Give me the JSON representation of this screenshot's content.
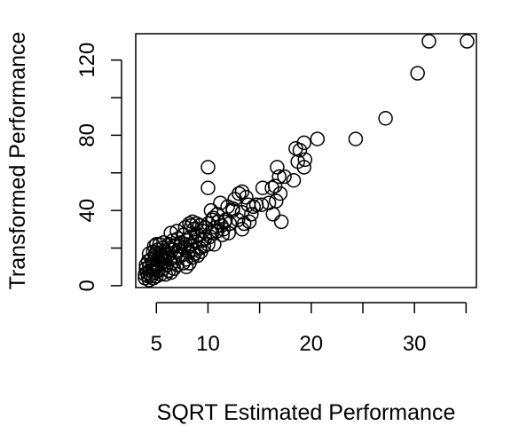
{
  "chart_data": {
    "type": "scatter",
    "title": "",
    "xlabel": "SQRT Estimated Performance",
    "ylabel": "Transformed Performance",
    "xlim": [
      3,
      36
    ],
    "ylim": [
      -1,
      134
    ],
    "xticks": [
      5,
      10,
      15,
      20,
      25,
      30,
      35
    ],
    "xtick_labels": [
      "5",
      "10",
      "",
      "20",
      "",
      "30",
      ""
    ],
    "yticks": [
      0,
      20,
      40,
      60,
      80,
      100,
      120
    ],
    "ytick_labels": [
      "0",
      "",
      "40",
      "",
      "80",
      "",
      "120"
    ],
    "marker": "open-circle",
    "color": "#000000",
    "points": [
      [
        35.1,
        130
      ],
      [
        31.4,
        130
      ],
      [
        30.3,
        113
      ],
      [
        27.2,
        89
      ],
      [
        24.3,
        78
      ],
      [
        20.6,
        78
      ],
      [
        19.3,
        76
      ],
      [
        18.5,
        73
      ],
      [
        18.9,
        72
      ],
      [
        19.4,
        67
      ],
      [
        18.7,
        66
      ],
      [
        19.3,
        63
      ],
      [
        18.3,
        56
      ],
      [
        16.7,
        63
      ],
      [
        16.9,
        58
      ],
      [
        17.4,
        58
      ],
      [
        16.5,
        53
      ],
      [
        16.2,
        52
      ],
      [
        17.0,
        49
      ],
      [
        15.3,
        52
      ],
      [
        16.6,
        45
      ],
      [
        10.0,
        63
      ],
      [
        10.0,
        52
      ],
      [
        13.3,
        50
      ],
      [
        13.7,
        47
      ],
      [
        12.6,
        46
      ],
      [
        14.7,
        43
      ],
      [
        14.4,
        42
      ],
      [
        12.4,
        41
      ],
      [
        13.3,
        39
      ],
      [
        14.2,
        38
      ],
      [
        16.3,
        38
      ],
      [
        17.1,
        34
      ],
      [
        13.5,
        33
      ],
      [
        13.3,
        30
      ],
      [
        11.2,
        44
      ],
      [
        11.9,
        42
      ],
      [
        12.4,
        40
      ],
      [
        10.3,
        40
      ],
      [
        10.9,
        38
      ],
      [
        10.4,
        35
      ],
      [
        11.0,
        34
      ],
      [
        11.3,
        32
      ],
      [
        10.7,
        31
      ],
      [
        11.5,
        30
      ],
      [
        12.0,
        28
      ],
      [
        11.4,
        27
      ],
      [
        10.0,
        33
      ],
      [
        9.7,
        31
      ],
      [
        8.9,
        33
      ],
      [
        8.5,
        34
      ],
      [
        8.2,
        33
      ],
      [
        7.8,
        31
      ],
      [
        8.6,
        30
      ],
      [
        9.5,
        29
      ],
      [
        9.0,
        27
      ],
      [
        8.3,
        26
      ],
      [
        7.6,
        27
      ],
      [
        7.0,
        29
      ],
      [
        6.4,
        28
      ],
      [
        10.2,
        26
      ],
      [
        9.7,
        25
      ],
      [
        9.4,
        24
      ],
      [
        10.0,
        22
      ],
      [
        10.6,
        22
      ],
      [
        8.8,
        24
      ],
      [
        8.4,
        22
      ],
      [
        8.0,
        24
      ],
      [
        7.4,
        23
      ],
      [
        7.1,
        25
      ],
      [
        6.6,
        24
      ],
      [
        6.2,
        22
      ],
      [
        5.7,
        23
      ],
      [
        5.3,
        22
      ],
      [
        5.0,
        22
      ],
      [
        4.8,
        21
      ],
      [
        9.2,
        20
      ],
      [
        8.6,
        19
      ],
      [
        8.1,
        18
      ],
      [
        7.7,
        20
      ],
      [
        7.2,
        19
      ],
      [
        6.9,
        18
      ],
      [
        6.5,
        19
      ],
      [
        6.0,
        17
      ],
      [
        5.6,
        18
      ],
      [
        5.1,
        19
      ],
      [
        4.7,
        18
      ],
      [
        4.3,
        17
      ],
      [
        9.0,
        16
      ],
      [
        8.5,
        15
      ],
      [
        7.9,
        14
      ],
      [
        7.4,
        16
      ],
      [
        6.8,
        15
      ],
      [
        6.3,
        14
      ],
      [
        5.8,
        15
      ],
      [
        5.4,
        14
      ],
      [
        4.9,
        15
      ],
      [
        4.5,
        14
      ],
      [
        4.2,
        13
      ],
      [
        8.2,
        12
      ],
      [
        7.6,
        12
      ],
      [
        7.0,
        11
      ],
      [
        6.5,
        12
      ],
      [
        6.0,
        11
      ],
      [
        5.5,
        12
      ],
      [
        5.0,
        11
      ],
      [
        4.6,
        12
      ],
      [
        4.3,
        10
      ],
      [
        4.0,
        11
      ],
      [
        6.7,
        9
      ],
      [
        6.2,
        8
      ],
      [
        5.7,
        9
      ],
      [
        5.2,
        8
      ],
      [
        4.8,
        9
      ],
      [
        4.4,
        8
      ],
      [
        4.1,
        7
      ],
      [
        5.9,
        6
      ],
      [
        5.4,
        6
      ],
      [
        4.9,
        7
      ],
      [
        4.5,
        5
      ],
      [
        4.2,
        5
      ],
      [
        3.9,
        4
      ],
      [
        3.9,
        6
      ],
      [
        4.3,
        3
      ],
      [
        4.7,
        4
      ],
      [
        5.0,
        5
      ],
      [
        4.6,
        10
      ],
      [
        5.2,
        13
      ],
      [
        5.8,
        13
      ],
      [
        6.1,
        16
      ],
      [
        5.4,
        16
      ],
      [
        4.9,
        17
      ],
      [
        5.6,
        20
      ],
      [
        6.3,
        20
      ],
      [
        6.8,
        21
      ],
      [
        7.3,
        21
      ],
      [
        7.8,
        22
      ],
      [
        8.3,
        21
      ],
      [
        8.7,
        17
      ],
      [
        9.3,
        18
      ],
      [
        9.6,
        21
      ],
      [
        10.4,
        28
      ],
      [
        10.9,
        29
      ],
      [
        11.7,
        35
      ],
      [
        12.9,
        35
      ],
      [
        13.9,
        43
      ],
      [
        14.0,
        34
      ],
      [
        11.6,
        34
      ],
      [
        12.1,
        33
      ],
      [
        13.0,
        49
      ],
      [
        15.9,
        44
      ],
      [
        15.2,
        43
      ],
      [
        10.5,
        36
      ],
      [
        9.2,
        32
      ],
      [
        8.4,
        32
      ],
      [
        7.9,
        10
      ],
      [
        5.1,
        10
      ],
      [
        4.4,
        6
      ],
      [
        4.0,
        9
      ],
      [
        6.4,
        7
      ]
    ]
  }
}
